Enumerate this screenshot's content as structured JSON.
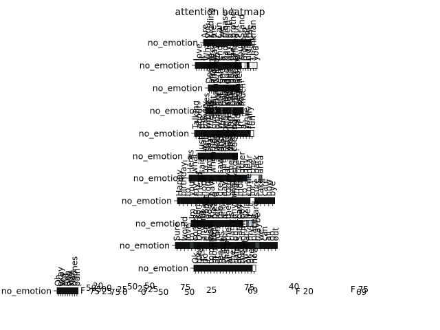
{
  "chart_data": {
    "type": "heatmap",
    "title": "attention heatmap",
    "ylabel_text": "no_emotion",
    "rows": [
      {
        "label": "no_emotion",
        "tokens": [
          "Are",
          "you",
          "kidding",
          "me",
          "?",
          "Can",
          "we",
          "please",
          "help",
          "a",
          "brother",
          "out",
          "?",
          "Stand",
          "up",
          "for",
          "the",
          "man"
        ],
        "values": [
          0.95,
          0.95,
          0.95,
          0.95,
          0.95,
          0.95,
          0.95,
          0.95,
          0.95,
          0.95,
          0.95,
          0.95,
          0.95,
          0.95,
          0.95,
          0.95,
          0.95,
          0.0
        ],
        "bins": 1
      },
      {
        "label": "no_emotion",
        "tokens": [
          "I",
          "love",
          "it",
          "!",
          "What",
          "a",
          "great",
          "way",
          "to",
          "end",
          "a",
          "bad",
          "day",
          "at",
          "the",
          "office",
          "!",
          "You",
          "made",
          "my",
          "night",
          "!",
          "Thank",
          "you"
        ],
        "values": [
          0.95,
          0.95,
          0.95,
          0.95,
          0.95,
          0.95,
          0.95,
          0.95,
          0.95,
          0.95,
          0.95,
          0.95,
          0.95,
          0.95,
          0.95,
          0.95,
          0.95,
          0.95,
          0.0,
          0.35,
          0.95,
          0.0,
          0.15,
          0.05
        ],
        "bins": 1
      },
      {
        "label": "no_emotion",
        "tokens": [
          "Does",
          "anyone",
          "know",
          "where",
          "I",
          "can",
          "find",
          "a",
          "good",
          "deal",
          "on",
          "used",
          "cars",
          "around",
          "here",
          "?"
        ],
        "values": [
          0.95,
          0.95,
          0.95,
          0.95,
          0.95,
          0.95,
          0.95,
          0.95,
          0.95,
          0.95,
          0.95,
          0.95,
          0.95,
          0.95,
          0.95,
          0.0
        ],
        "bins": 1
      },
      {
        "label": "no_emotion",
        "tokens": [
          "Yes",
          "it",
          "is",
          "a",
          "bit",
          "much",
          "to",
          "ask",
          "but",
          "I",
          "think",
          "you",
          "should",
          "not",
          "have",
          "been",
          "there",
          "to",
          "begin",
          "with",
          "so",
          "much"
        ],
        "values": [
          0.95,
          0.95,
          0.95,
          0.95,
          0.95,
          0.7,
          0.95,
          0.95,
          0.95,
          0.8,
          0.95,
          0.95,
          0.95,
          0.95,
          0.95,
          0.8,
          0.95,
          0.95,
          0.95,
          0.95,
          0.95,
          0.95
        ],
        "bins": 1
      },
      {
        "label": "no_emotion",
        "tokens": [
          "Talking",
          "about",
          "the",
          "movie",
          "with",
          "friends",
          "over",
          "dinner",
          "was",
          "the",
          "most",
          "fun",
          "I",
          "have",
          "had",
          "in",
          "a",
          "while",
          "really",
          "fun"
        ],
        "values": [
          0.95,
          0.95,
          0.95,
          0.95,
          0.95,
          0.95,
          0.95,
          0.95,
          0.95,
          0.95,
          0.95,
          0.95,
          0.95,
          0.95,
          0.95,
          0.95,
          0.95,
          0.95,
          0.95,
          0.0
        ],
        "bins": 1
      },
      {
        "label": "no_emotion_a",
        "tokens": [
          "I",
          "just",
          "want",
          "to",
          "say",
          "that",
          "the",
          "food",
          "was",
          "great",
          "and",
          "the",
          "service",
          "was",
          "amazing",
          "keep",
          "cooking",
          "!"
        ],
        "values": [
          0.95,
          0.95,
          0.95,
          0.95,
          0.95,
          0.95,
          0.95,
          0.95,
          0.95,
          0.95,
          0.95,
          0.95,
          0.95,
          0.95,
          0.95,
          0.95,
          0.95,
          0.95
        ],
        "bins": 1
      },
      {
        "label": "no_emotion",
        "tokens": [
          "Heres",
          "what",
          "I",
          "said",
          "to",
          "him",
          "when",
          "I",
          "saw",
          "him",
          "at",
          "the",
          "store",
          "the",
          "other",
          "day",
          "near",
          "the",
          "park",
          "area"
        ],
        "values": [
          0.95,
          0.95,
          0.95,
          0.95,
          0.95,
          0.95,
          0.95,
          0.95,
          0.95,
          0.95,
          0.95,
          0.95,
          0.95,
          0.95,
          0.95,
          0.95,
          0.5,
          0.0,
          0.0,
          0.7
        ],
        "bins": 1
      },
      {
        "label": "no_emotion",
        "tokens": [
          "Happy",
          "birthday",
          "to",
          "you",
          "my",
          "friend",
          "hope",
          "you",
          "have",
          "a",
          "great",
          "day",
          "today",
          "and",
          "many",
          "more",
          "to",
          "come",
          "for",
          "sure",
          "take",
          "care",
          "now",
          "bye"
        ],
        "values": [
          0.95,
          0.95,
          0.95,
          0.95,
          0.95,
          0.95,
          0.95,
          0.95,
          0.95,
          0.95,
          0.95,
          0.95,
          0.95,
          0.95,
          0.95,
          0.95,
          0.95,
          0.95,
          0.0,
          0.95,
          0.95,
          0.95,
          0.95,
          0.95
        ],
        "bins": 1
      },
      {
        "label": "no_emotion",
        "tokens": [
          "Im",
          "so",
          "sorry",
          "to",
          "hear",
          "about",
          "your",
          "loss",
          "please",
          "let",
          "me",
          "know",
          "if",
          "there",
          "is",
          "anything",
          "I",
          "can",
          "do",
          "to",
          "help",
          "it",
          "a",
          "card"
        ],
        "values": [
          0.95,
          0.95,
          0.95,
          0.95,
          0.95,
          0.95,
          0.95,
          0.95,
          0.95,
          0.95,
          0.95,
          0.95,
          0.95,
          0.95,
          0.95,
          0.95,
          0.95,
          0.95,
          0.95,
          0.0,
          0.75,
          0.3,
          0.6,
          0.0
        ],
        "bins": 1
      },
      {
        "label": "no_emotion",
        "tokens": [
          "Sure",
          "I",
          "would",
          "love",
          "to",
          "come",
          "Does",
          "anyone",
          "else",
          "want",
          "to",
          "join",
          "us",
          "for",
          "the",
          "party",
          "on",
          "Saturday",
          "night",
          "at",
          "my",
          "place",
          "maybe",
          "we",
          "can",
          "all",
          "go",
          "out"
        ],
        "values": [
          0.95,
          0.95,
          0.95,
          0.95,
          0.85,
          0.95,
          0.95,
          0.95,
          0.95,
          0.95,
          0.95,
          0.95,
          0.95,
          0.95,
          0.95,
          0.95,
          0.95,
          0.95,
          0.95,
          0.95,
          0.95,
          0.95,
          0.8,
          0.95,
          0.95,
          0.95,
          0.95,
          0.95
        ],
        "bins": 1
      },
      {
        "label": "no_emotion",
        "tokens": [
          "Ok",
          "then",
          "lets",
          "do",
          "it",
          "tomorrow",
          "morning",
          "at",
          "ten",
          "oclock",
          "sharp",
          "at",
          "the",
          "cafe",
          "down",
          "the",
          "street",
          "ok",
          "bye",
          "now"
        ],
        "values": [
          0.95,
          0.95,
          0.95,
          0.95,
          0.95,
          0.95,
          0.95,
          0.95,
          0.95,
          0.95,
          0.95,
          0.95,
          0.95,
          0.95,
          0.95,
          0.95,
          0.95,
          0.95,
          0.95,
          0.0
        ],
        "bins": 1
      },
      {
        "label": "no_emotion",
        "tokens": [
          "Oh",
          "okay",
          "Yes",
          "but",
          "Bob",
          "you",
          "Nah",
          "phones",
          "pain"
        ],
        "values": [
          0.95,
          0.95,
          0.95,
          0.95,
          0.95,
          0.95,
          0.95,
          0.95,
          0.95
        ],
        "bins": 1
      }
    ],
    "colormap": {
      "low": "#ffffff",
      "mid": "#9aaab0",
      "high": "#000000"
    },
    "bottom_tick_labels": [
      "F",
      "50",
      "75",
      "20",
      "50",
      "25",
      "0",
      "75",
      "25",
      "0",
      "50",
      "25",
      "0",
      "50",
      "25",
      "50",
      "75",
      "50",
      "25",
      "75",
      "69",
      "40",
      "F 20",
      "F 75",
      "69"
    ]
  }
}
